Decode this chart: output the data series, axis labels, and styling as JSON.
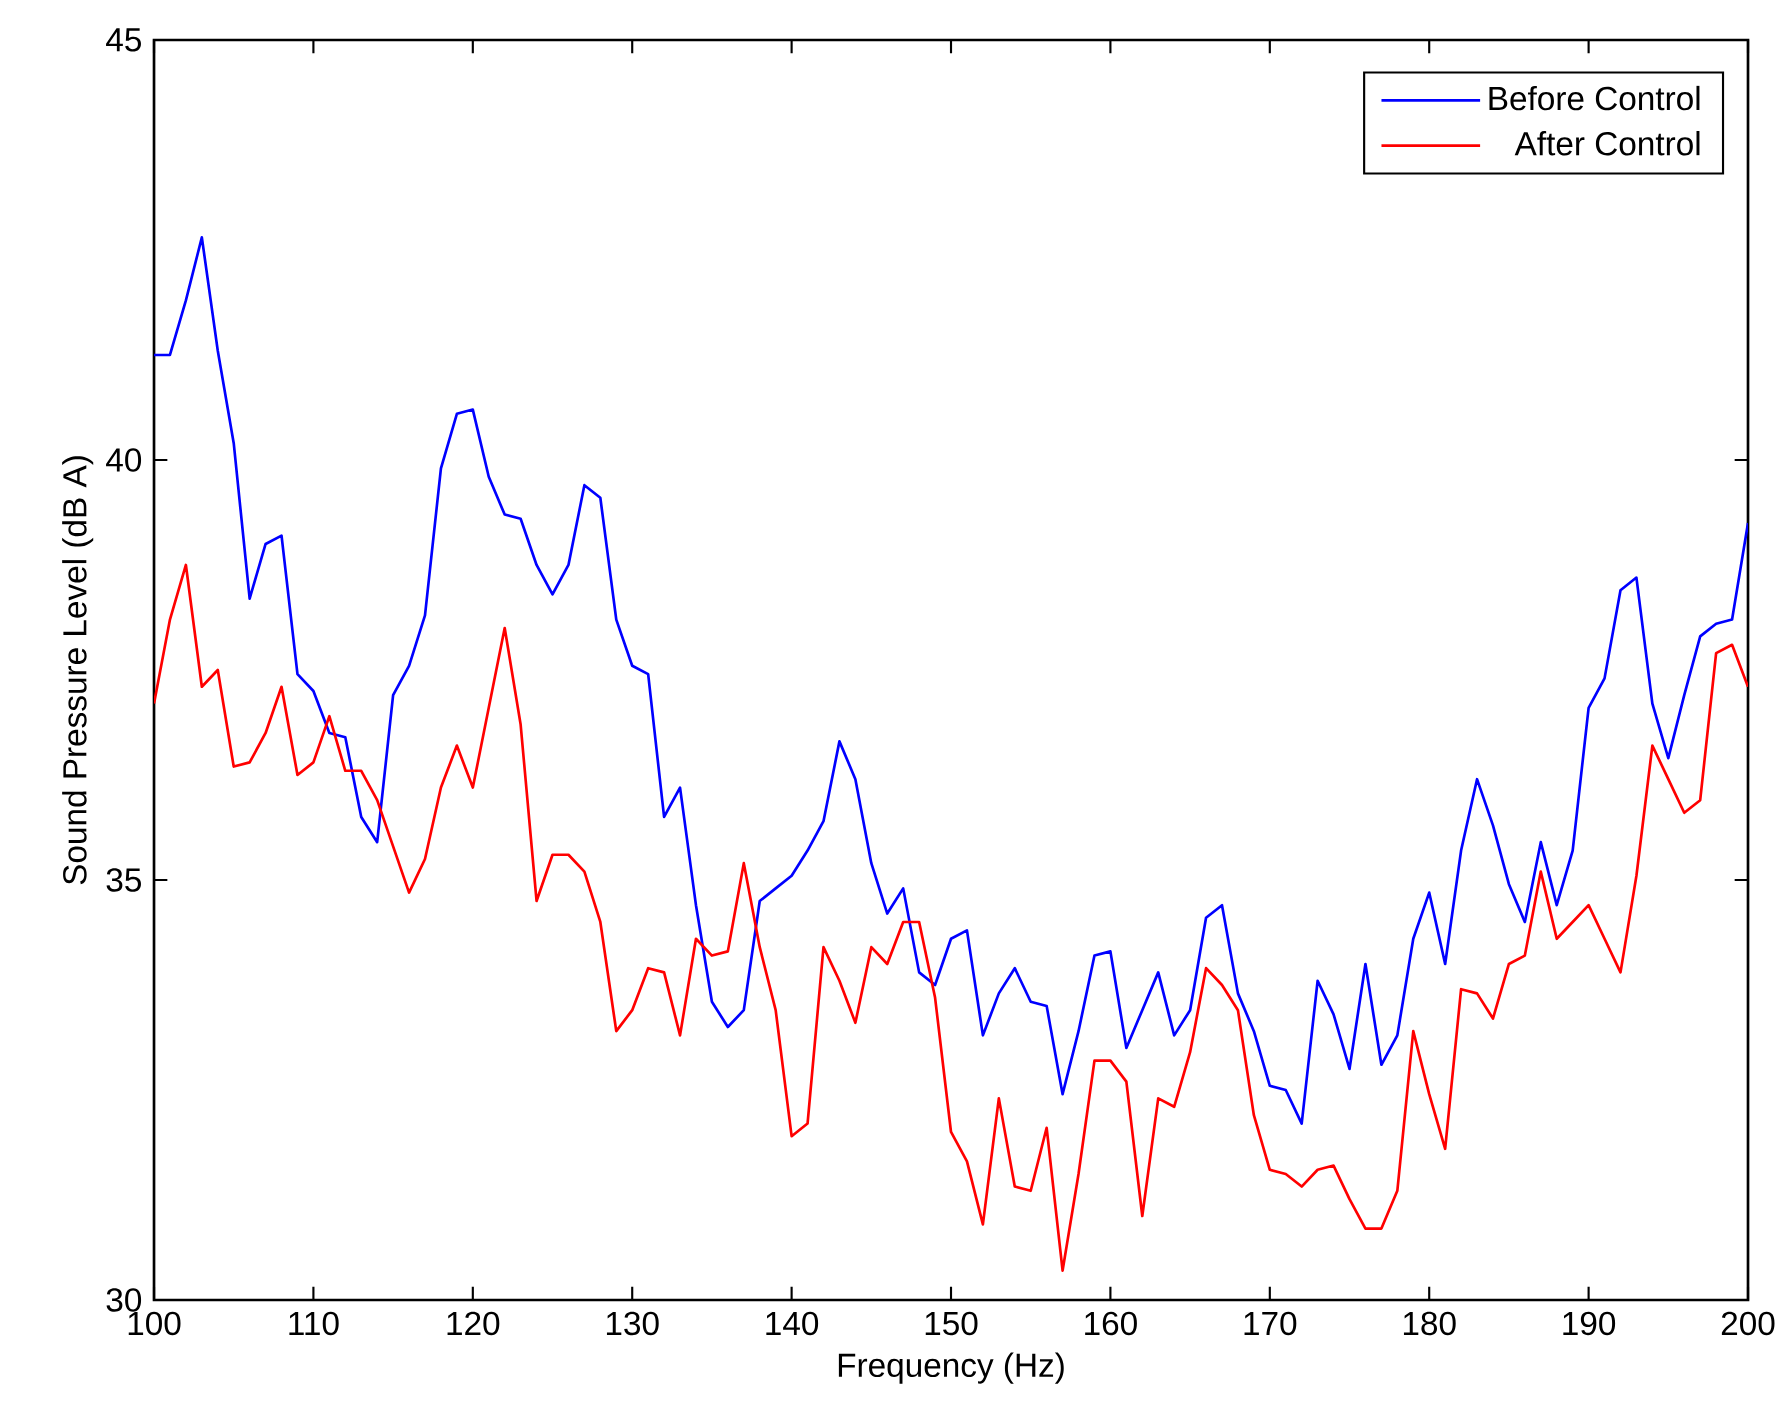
{
  "chart_data": {
    "type": "line",
    "xlabel": "Frequency (Hz)",
    "ylabel": "Sound Pressure Level (dB A)",
    "x": [
      100,
      101,
      102,
      103,
      104,
      105,
      106,
      107,
      108,
      109,
      110,
      111,
      112,
      113,
      114,
      115,
      116,
      117,
      118,
      119,
      120,
      121,
      122,
      123,
      124,
      125,
      126,
      127,
      128,
      129,
      130,
      131,
      132,
      133,
      134,
      135,
      136,
      137,
      138,
      139,
      140,
      141,
      142,
      143,
      144,
      145,
      146,
      147,
      148,
      149,
      150,
      151,
      152,
      153,
      154,
      155,
      156,
      157,
      158,
      159,
      160,
      161,
      162,
      163,
      164,
      165,
      166,
      167,
      168,
      169,
      170,
      171,
      172,
      173,
      174,
      175,
      176,
      177,
      178,
      179,
      180,
      181,
      182,
      183,
      184,
      185,
      186,
      187,
      188,
      189,
      190,
      191,
      192,
      193,
      194,
      195,
      196,
      197,
      198,
      199,
      200
    ],
    "series": [
      {
        "name": "Before Control",
        "color": "#0000ff",
        "values": [
          41.25,
          41.25,
          41.9,
          42.65,
          41.3,
          40.2,
          38.35,
          39.0,
          39.1,
          37.45,
          37.25,
          36.75,
          36.7,
          35.75,
          35.45,
          37.2,
          37.55,
          38.15,
          39.9,
          40.55,
          40.6,
          39.8,
          39.35,
          39.3,
          38.75,
          38.4,
          38.75,
          39.7,
          39.55,
          38.1,
          37.55,
          37.45,
          35.75,
          36.1,
          34.7,
          33.55,
          33.25,
          33.45,
          34.75,
          34.9,
          35.05,
          35.35,
          35.7,
          36.65,
          36.2,
          35.2,
          34.6,
          34.9,
          33.9,
          33.75,
          34.3,
          34.4,
          33.15,
          33.65,
          33.95,
          33.55,
          33.5,
          32.45,
          33.2,
          34.1,
          34.15,
          33.0,
          33.45,
          33.9,
          33.15,
          33.45,
          34.55,
          34.7,
          33.65,
          33.2,
          32.55,
          32.5,
          32.1,
          33.8,
          33.4,
          32.75,
          34.0,
          32.8,
          33.15,
          34.3,
          34.85,
          34.0,
          35.35,
          36.2,
          35.65,
          34.95,
          34.5,
          35.45,
          34.7,
          35.35,
          37.05,
          37.4,
          38.45,
          38.6,
          37.1,
          36.45,
          37.2,
          37.9,
          38.05,
          38.1,
          39.25
        ]
      },
      {
        "name": "After Control",
        "color": "#ff0000",
        "values": [
          37.1,
          38.1,
          38.75,
          37.3,
          37.5,
          36.35,
          36.4,
          36.75,
          37.3,
          36.25,
          36.4,
          36.95,
          36.3,
          36.3,
          35.95,
          35.4,
          34.85,
          35.25,
          36.1,
          36.6,
          36.1,
          37.05,
          38.0,
          36.85,
          34.75,
          35.3,
          35.3,
          35.1,
          34.5,
          33.2,
          33.45,
          33.95,
          33.9,
          33.15,
          34.3,
          34.1,
          34.15,
          35.2,
          34.2,
          33.45,
          31.95,
          32.1,
          34.2,
          33.8,
          33.3,
          34.2,
          34.0,
          34.5,
          34.5,
          33.6,
          32.0,
          31.65,
          30.9,
          32.4,
          31.35,
          31.3,
          32.05,
          30.35,
          31.5,
          32.85,
          32.85,
          32.6,
          31.0,
          32.4,
          32.3,
          32.95,
          33.95,
          33.75,
          33.45,
          32.2,
          31.55,
          31.5,
          31.35,
          31.55,
          31.6,
          31.2,
          30.85,
          30.85,
          31.3,
          33.2,
          32.45,
          31.8,
          33.7,
          33.65,
          33.35,
          34.0,
          34.1,
          35.1,
          34.3,
          34.5,
          34.7,
          34.3,
          33.9,
          35.05,
          36.6,
          36.2,
          35.8,
          35.95,
          37.7,
          37.8,
          37.3
        ]
      }
    ],
    "xlim": [
      100,
      200
    ],
    "ylim": [
      30,
      45
    ],
    "xticks": [
      100,
      110,
      120,
      130,
      140,
      150,
      160,
      170,
      180,
      190,
      200
    ],
    "yticks": [
      30,
      35,
      40,
      45
    ],
    "grid": false,
    "legend": "top right",
    "marker": "none",
    "line_style": "solid"
  }
}
